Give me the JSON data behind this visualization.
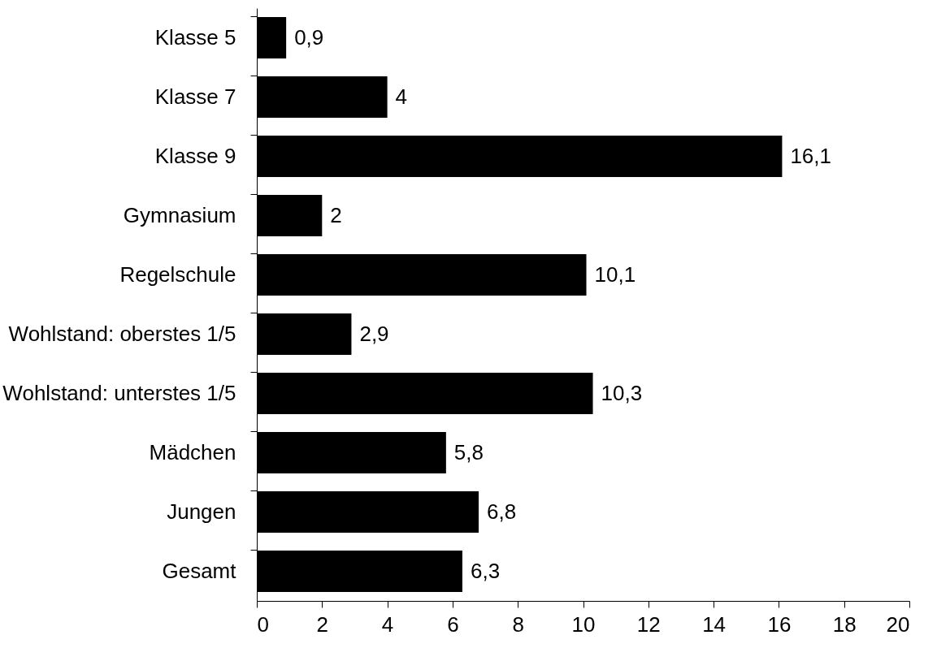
{
  "chart_data": {
    "type": "bar",
    "orientation": "horizontal",
    "categories": [
      "Klasse 5",
      "Klasse 7",
      "Klasse 9",
      "Gymnasium",
      "Regelschule",
      "Wohlstand: oberstes 1/5",
      "Wohlstand: unterstes 1/5",
      "Mädchen",
      "Jungen",
      "Gesamt"
    ],
    "values": [
      0.9,
      4,
      16.1,
      2,
      10.1,
      2.9,
      10.3,
      5.8,
      6.8,
      6.3
    ],
    "value_labels": [
      "0,9",
      "4",
      "16,1",
      "2",
      "10,1",
      "2,9",
      "10,3",
      "5,8",
      "6,8",
      "6,3"
    ],
    "color": "#000000",
    "xlim": [
      0,
      20
    ],
    "xticks": [
      0,
      2,
      4,
      6,
      8,
      10,
      12,
      14,
      16,
      18,
      20
    ],
    "grid": false
  }
}
